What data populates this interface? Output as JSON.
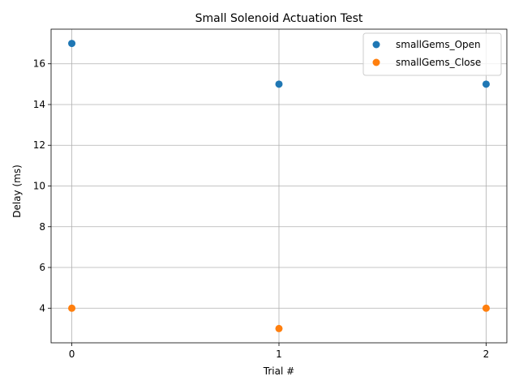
{
  "chart_data": {
    "type": "scatter",
    "title": "Small Solenoid Actuation Test",
    "xlabel": "Trial #",
    "ylabel": "Delay (ms)",
    "x": [
      0,
      1,
      2
    ],
    "xticks": [
      0,
      1,
      2
    ],
    "yticks": [
      4,
      6,
      8,
      10,
      12,
      14,
      16
    ],
    "xlim": [
      -0.1,
      2.1
    ],
    "ylim": [
      2.3,
      17.7
    ],
    "grid": true,
    "legend_position": "top-right",
    "series": [
      {
        "name": "smallGems_Open",
        "color": "#1f77b4",
        "values": [
          17,
          15,
          15
        ]
      },
      {
        "name": "smallGems_Close",
        "color": "#ff7f0e",
        "values": [
          4,
          3,
          4
        ]
      }
    ]
  }
}
